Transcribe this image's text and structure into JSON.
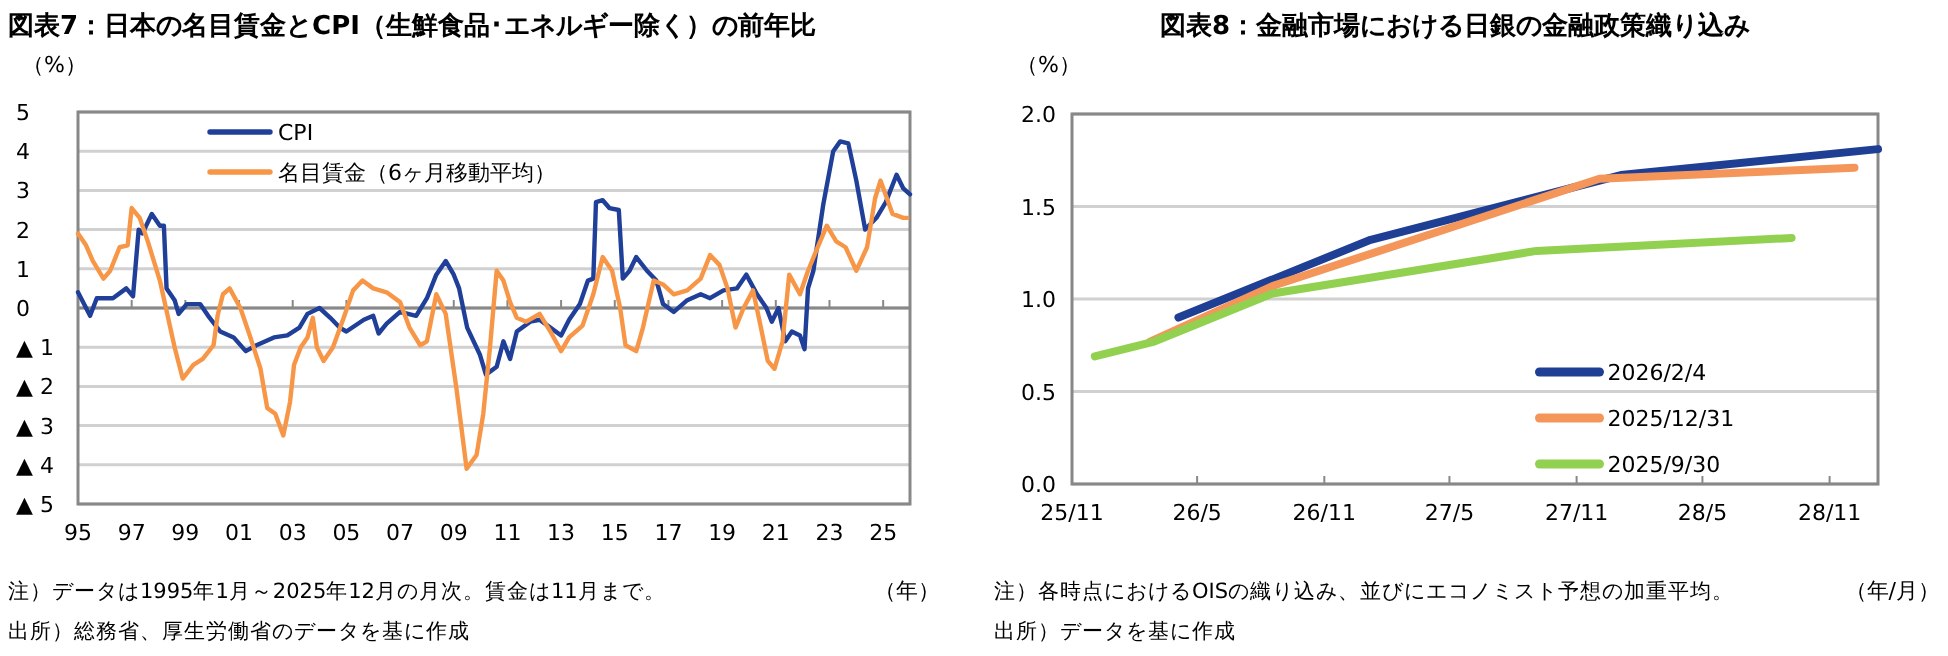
{
  "chart_data": [
    {
      "type": "line",
      "title": "図表7：日本の名目賃金とCPI（生鮮食品･エネルギー除く）の前年比",
      "ylabel": "（%）",
      "xlabel": "（年）",
      "legend": "top left",
      "grid": "y",
      "line_style": "solid",
      "marker": "none",
      "xlim": [
        1995,
        2026
      ],
      "xticks": [
        {
          "value": 1995,
          "label": "95"
        },
        {
          "value": 1997,
          "label": "97"
        },
        {
          "value": 1999,
          "label": "99"
        },
        {
          "value": 2001,
          "label": "01"
        },
        {
          "value": 2003,
          "label": "03"
        },
        {
          "value": 2005,
          "label": "05"
        },
        {
          "value": 2007,
          "label": "07"
        },
        {
          "value": 2009,
          "label": "09"
        },
        {
          "value": 2011,
          "label": "11"
        },
        {
          "value": 2013,
          "label": "13"
        },
        {
          "value": 2015,
          "label": "15"
        },
        {
          "value": 2017,
          "label": "17"
        },
        {
          "value": 2019,
          "label": "19"
        },
        {
          "value": 2021,
          "label": "21"
        },
        {
          "value": 2023,
          "label": "23"
        },
        {
          "value": 2025,
          "label": "25"
        }
      ],
      "ylim": [
        -5,
        5
      ],
      "yticks": [
        {
          "value": -5,
          "label": "▲ 5"
        },
        {
          "value": -4,
          "label": "▲ 4"
        },
        {
          "value": -3,
          "label": "▲ 3"
        },
        {
          "value": -2,
          "label": "▲ 2"
        },
        {
          "value": -1,
          "label": "▲ 1"
        },
        0,
        1,
        2,
        3,
        4,
        5
      ],
      "annotations": [
        "注）データは1995年1月～2025年12月の月次。賃金は11月まで。",
        "出所）総務省、厚生労働省のデータを基に作成"
      ],
      "series": [
        {
          "name": "CPI",
          "color": "#1f3f99",
          "x": [
            1995.0,
            1995.45,
            1995.7,
            1996.3,
            1996.8,
            1997.05,
            1997.26,
            1997.4,
            1997.75,
            1998.05,
            1998.2,
            1998.3,
            1998.6,
            1998.75,
            1999.05,
            1999.55,
            1999.85,
            2000.3,
            2000.8,
            2001.25,
            2001.65,
            2002.3,
            2002.8,
            2003.25,
            2003.55,
            2004.0,
            2004.4,
            2004.75,
            2005.0,
            2005.65,
            2006.0,
            2006.2,
            2006.5,
            2007.0,
            2007.6,
            2008.0,
            2008.35,
            2008.7,
            2009.0,
            2009.2,
            2009.5,
            2009.98,
            2010.2,
            2010.6,
            2010.85,
            2011.1,
            2011.35,
            2011.85,
            2012.2,
            2012.6,
            2013.0,
            2013.3,
            2013.7,
            2014.0,
            2014.2,
            2014.3,
            2014.55,
            2014.8,
            2015.15,
            2015.3,
            2015.55,
            2015.8,
            2016.2,
            2016.55,
            2016.8,
            2017.2,
            2017.7,
            2018.2,
            2018.55,
            2019.05,
            2019.55,
            2019.9,
            2020.3,
            2020.65,
            2020.85,
            2021.1,
            2021.35,
            2021.6,
            2021.9,
            2022.07,
            2022.2,
            2022.4,
            2022.77,
            2023.14,
            2023.4,
            2023.7,
            2024.0,
            2024.33,
            2024.75,
            2025.1,
            2025.5,
            2025.75,
            2026.0
          ],
          "values": [
            0.4,
            -0.2,
            0.25,
            0.25,
            0.5,
            0.3,
            2.0,
            1.9,
            2.4,
            2.1,
            2.1,
            0.5,
            0.2,
            -0.15,
            0.1,
            0.1,
            -0.2,
            -0.6,
            -0.75,
            -1.1,
            -0.95,
            -0.75,
            -0.7,
            -0.5,
            -0.15,
            0.0,
            -0.25,
            -0.5,
            -0.6,
            -0.3,
            -0.2,
            -0.65,
            -0.4,
            -0.1,
            -0.2,
            0.25,
            0.85,
            1.2,
            0.85,
            0.5,
            -0.5,
            -1.2,
            -1.7,
            -1.5,
            -0.85,
            -1.3,
            -0.6,
            -0.35,
            -0.3,
            -0.5,
            -0.7,
            -0.3,
            0.1,
            0.7,
            0.75,
            2.7,
            2.75,
            2.55,
            2.5,
            0.75,
            0.95,
            1.3,
            0.95,
            0.7,
            0.1,
            -0.1,
            0.2,
            0.35,
            0.25,
            0.45,
            0.5,
            0.85,
            0.35,
            0.0,
            -0.35,
            0.0,
            -0.85,
            -0.6,
            -0.7,
            -1.05,
            0.5,
            0.95,
            2.65,
            4.0,
            4.25,
            4.2,
            3.25,
            2.0,
            2.3,
            2.7,
            3.4,
            3.05,
            2.9
          ]
        },
        {
          "name": "名目賃金（6ヶ月移動平均）",
          "color": "#f79646",
          "x": [
            1995.0,
            1995.3,
            1995.55,
            1995.95,
            1996.2,
            1996.55,
            1996.85,
            1997.0,
            1997.3,
            1997.6,
            1998.05,
            1998.6,
            1998.9,
            1999.3,
            1999.65,
            2000.05,
            2000.2,
            2000.4,
            2000.65,
            2001.05,
            2001.4,
            2001.8,
            2002.05,
            2002.35,
            2002.65,
            2002.9,
            2003.05,
            2003.3,
            2003.55,
            2003.75,
            2003.9,
            2004.15,
            2004.5,
            2004.9,
            2005.25,
            2005.6,
            2006.0,
            2006.5,
            2007.0,
            2007.35,
            2007.75,
            2008.0,
            2008.35,
            2008.7,
            2009.1,
            2009.48,
            2009.85,
            2010.1,
            2010.35,
            2010.6,
            2010.85,
            2011.1,
            2011.35,
            2011.7,
            2012.2,
            2012.6,
            2013.0,
            2013.3,
            2013.8,
            2014.2,
            2014.55,
            2014.9,
            2015.2,
            2015.4,
            2015.8,
            2016.05,
            2016.45,
            2016.8,
            2017.2,
            2017.7,
            2018.2,
            2018.55,
            2018.9,
            2019.2,
            2019.5,
            2019.8,
            2020.15,
            2020.4,
            2020.7,
            2020.95,
            2021.25,
            2021.5,
            2021.9,
            2022.2,
            2022.5,
            2022.9,
            2023.25,
            2023.6,
            2024.0,
            2024.4,
            2024.7,
            2024.9,
            2025.35,
            2025.75,
            2025.9
          ],
          "values": [
            1.9,
            1.6,
            1.2,
            0.75,
            0.95,
            1.55,
            1.6,
            2.55,
            2.3,
            1.7,
            0.7,
            -1.0,
            -1.8,
            -1.45,
            -1.3,
            -0.95,
            -0.2,
            0.35,
            0.5,
            0.0,
            -0.7,
            -1.55,
            -2.55,
            -2.7,
            -3.25,
            -2.4,
            -1.45,
            -1.0,
            -0.75,
            -0.25,
            -1.0,
            -1.35,
            -1.0,
            -0.25,
            0.45,
            0.7,
            0.5,
            0.4,
            0.15,
            -0.5,
            -0.95,
            -0.85,
            0.35,
            -0.15,
            -2.05,
            -4.1,
            -3.75,
            -2.7,
            -1.0,
            0.95,
            0.7,
            0.15,
            -0.25,
            -0.35,
            -0.15,
            -0.6,
            -1.1,
            -0.75,
            -0.45,
            0.35,
            1.3,
            0.95,
            0.0,
            -0.95,
            -1.1,
            -0.5,
            0.7,
            0.6,
            0.35,
            0.45,
            0.75,
            1.35,
            1.1,
            0.5,
            -0.5,
            0.0,
            0.45,
            -0.35,
            -1.35,
            -1.55,
            -0.85,
            0.85,
            0.35,
            0.95,
            1.45,
            2.1,
            1.7,
            1.55,
            0.95,
            1.55,
            2.8,
            3.25,
            2.4,
            2.3,
            2.3
          ]
        }
      ]
    },
    {
      "type": "line",
      "title": "図表8：金融市場における日銀の金融政策織り込み",
      "ylabel": "（%）",
      "xlabel": "（年/月）",
      "legend": "bottom right",
      "grid": "y",
      "line_style": "solid",
      "marker": "none",
      "xlim": [
        "2025-11-01",
        "2029-01-10"
      ],
      "xticks": [
        {
          "value": "2025-11",
          "label": "25/11"
        },
        {
          "value": "2026-05",
          "label": "26/5"
        },
        {
          "value": "2026-11",
          "label": "26/11"
        },
        {
          "value": "2027-05",
          "label": "27/5"
        },
        {
          "value": "2027-11",
          "label": "27/11"
        },
        {
          "value": "2028-05",
          "label": "28/5"
        },
        {
          "value": "2028-11",
          "label": "28/11"
        }
      ],
      "ylim": [
        0,
        2
      ],
      "yticks": [
        {
          "value": 0,
          "label": "0.0"
        },
        0.5,
        {
          "value": 1,
          "label": "1.0"
        },
        1.5,
        {
          "value": 2,
          "label": "2.0"
        }
      ],
      "annotations": [
        "注）各時点におけるOISの織り込み、並びにエコノミスト予想の加重平均。",
        "出所）データを基に作成"
      ],
      "series": [
        {
          "name": "2026/2/4",
          "color": "#1f3f94",
          "x": [
            "2026-04-04",
            "2027-01-07",
            "2028-01-04",
            "2029-01-10"
          ],
          "values": [
            0.9,
            1.32,
            1.67,
            1.81
          ]
        },
        {
          "name": "2025/12/31",
          "color": "#f4955a",
          "x": [
            "2026-02-22",
            "2026-08-18",
            "2027-12-04",
            "2028-12-07"
          ],
          "values": [
            0.77,
            1.07,
            1.65,
            1.71
          ]
        },
        {
          "name": "2025/9/30",
          "color": "#92d050",
          "x": [
            "2025-12-04",
            "2026-02-28",
            "2026-08-18",
            "2027-09-04",
            "2028-09-07"
          ],
          "values": [
            0.69,
            0.77,
            1.03,
            1.26,
            1.33
          ]
        }
      ]
    }
  ]
}
